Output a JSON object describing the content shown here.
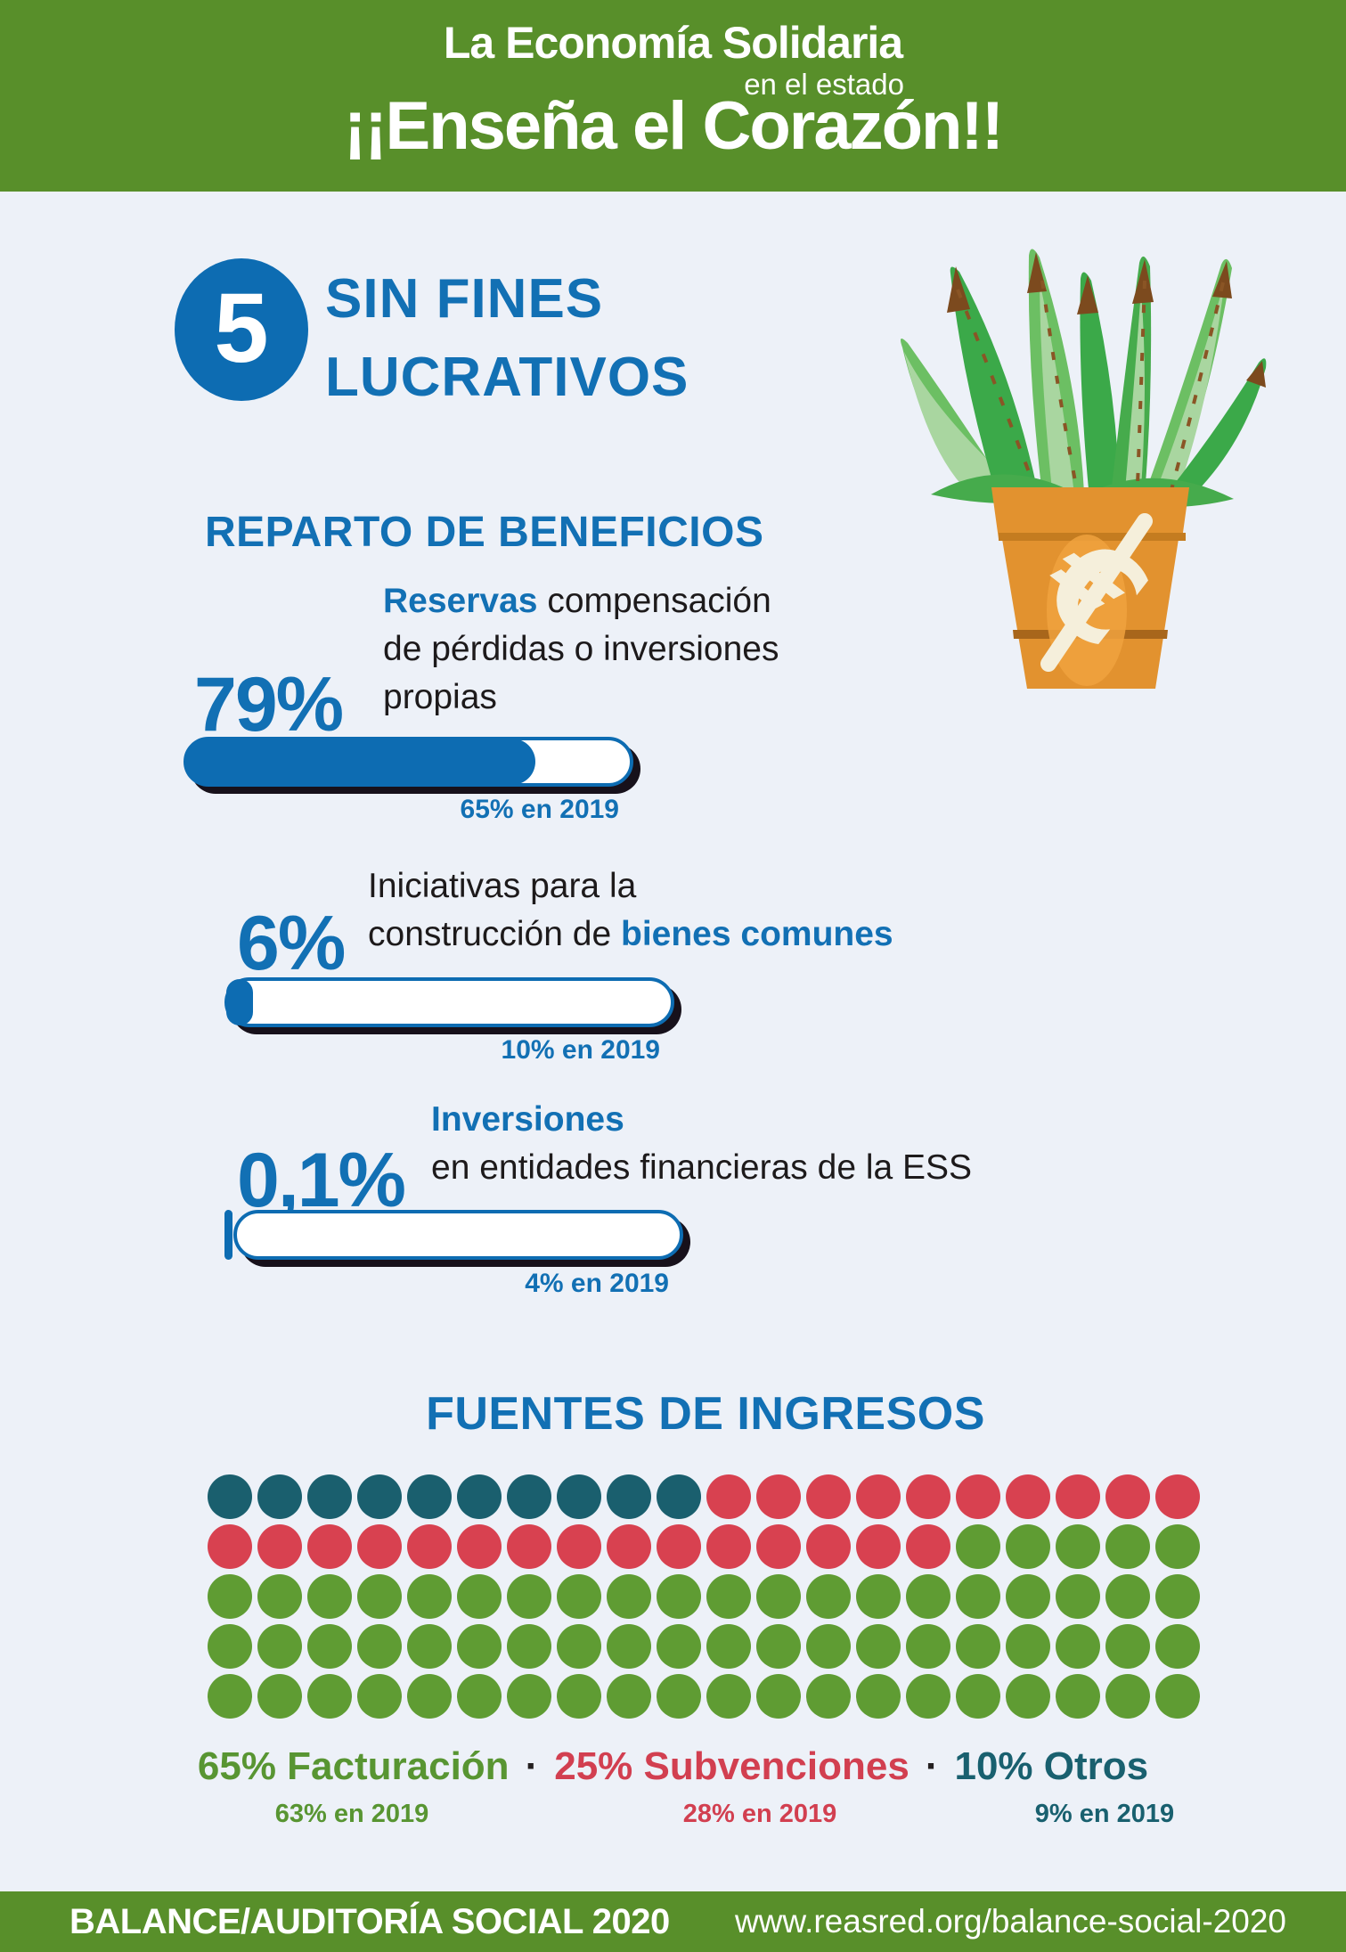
{
  "colors": {
    "background": "#edf1f8",
    "banner_green": "#588f2a",
    "accent_blue": "#1270b4",
    "bar_blue": "#0d6cb2",
    "text_black": "#1d1a1b",
    "dot_green": "#5f9c33",
    "dot_red": "#d84150",
    "dot_teal": "#1a5f6e",
    "pot_orange": "#e2922f"
  },
  "header": {
    "line1": "La Economía Solidaria",
    "line2": "en el estado",
    "line3": "¡¡Enseña el Corazón!!"
  },
  "section": {
    "number": "5",
    "title_lines": [
      "SIN FINES",
      "LUCRATIVOS"
    ]
  },
  "beneficios": {
    "title": "REPARTO DE BENEFICIOS",
    "items": [
      {
        "value": "79%",
        "pct": 79,
        "prev": "65% en 2019",
        "lines": [
          [
            {
              "t": "Reservas",
              "accent": true
            },
            {
              "t": " compensación",
              "accent": false
            }
          ],
          [
            {
              "t": "de pérdidas o inversiones",
              "accent": false
            }
          ],
          [
            {
              "t": "propias",
              "accent": false
            }
          ]
        ]
      },
      {
        "value": "6%",
        "pct": 6,
        "prev": "10% en 2019",
        "lines": [
          [
            {
              "t": "Iniciativas para la",
              "accent": false
            }
          ],
          [
            {
              "t": "construcción de ",
              "accent": false
            },
            {
              "t": "bienes comunes",
              "accent": true
            }
          ]
        ]
      },
      {
        "value": "0,1%",
        "pct": 0.1,
        "prev": "4% en 2019",
        "lines": [
          [
            {
              "t": "Inversiones",
              "accent": true
            }
          ],
          [
            {
              "t": "en entidades financieras de la ESS",
              "accent": false
            }
          ]
        ]
      }
    ]
  },
  "fuentes": {
    "title": "FUENTES DE INGRESOS",
    "separator": "·",
    "grid": {
      "columns": 20,
      "rows": 5,
      "total_dots": 100
    },
    "legend": [
      {
        "label": "65% Facturación",
        "sub": "63% en 2019",
        "color": "#589532",
        "dot_color": "#5f9c33",
        "count": 65
      },
      {
        "label": "25% Subvenciones",
        "sub": "28% en 2019",
        "color": "#d23f50",
        "dot_color": "#d84150",
        "count": 25
      },
      {
        "label": "10% Otros",
        "sub": "9% en 2019",
        "color": "#19606f",
        "dot_color": "#1a5f6e",
        "count": 10
      }
    ],
    "dot_fill_order": [
      2,
      1,
      0
    ]
  },
  "footer": {
    "left": "BALANCE/AUDITORÍA SOCIAL 2020",
    "right": "www.reasred.org/balance-social-2020"
  },
  "chart_data": [
    {
      "type": "bar",
      "title": "REPARTO DE BENEFICIOS",
      "unit": "%",
      "categories": [
        "Reservas compensación de pérdidas o inversiones propias",
        "Iniciativas para la construcción de bienes comunes",
        "Inversiones en entidades financieras de la ESS"
      ],
      "series": [
        {
          "name": "2020",
          "values": [
            79,
            6,
            0.1
          ]
        },
        {
          "name": "2019",
          "values": [
            65,
            10,
            4
          ]
        }
      ],
      "xlim": [
        0,
        100
      ],
      "orientation": "horizontal",
      "grid": false
    },
    {
      "type": "heatmap",
      "subtype": "waffle",
      "title": "FUENTES DE INGRESOS",
      "total_units": 100,
      "grid_columns": 20,
      "grid_rows": 5,
      "categories": [
        "Facturación",
        "Subvenciones",
        "Otros"
      ],
      "series": [
        {
          "name": "2020",
          "values": [
            65,
            25,
            10
          ]
        },
        {
          "name": "2019",
          "values": [
            63,
            28,
            9
          ]
        }
      ],
      "colors": [
        "#5f9c33",
        "#d84150",
        "#1a5f6e"
      ],
      "legend_position": "bottom"
    }
  ]
}
